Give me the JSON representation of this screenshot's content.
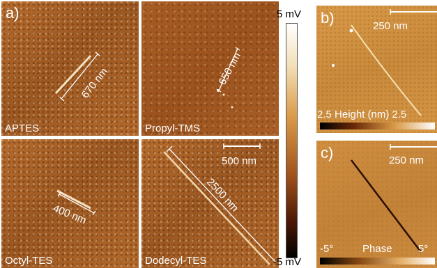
{
  "panels": {
    "a": {
      "letter": "a)",
      "tiles": [
        {
          "label": "APTES",
          "measure": "670 nm"
        },
        {
          "label": "Propyl-TMS",
          "measure": "650 nm"
        },
        {
          "label": "Octyl-TES",
          "measure": "400 nm"
        },
        {
          "label": "Dodecyl-TES",
          "measure": "2500 nm",
          "scale_bar": "500 nm"
        }
      ]
    },
    "colorbar": {
      "max": "5 mV",
      "min": "-5 mV"
    },
    "b": {
      "letter": "b)",
      "scale_bar": "250 nm",
      "axis_label": "-2.5 Height (nm) 2.5"
    },
    "c": {
      "letter": "c)",
      "scale_bar": "250 nm",
      "axis_min": "-5°",
      "axis_title": "Phase",
      "axis_max": "5°"
    }
  }
}
